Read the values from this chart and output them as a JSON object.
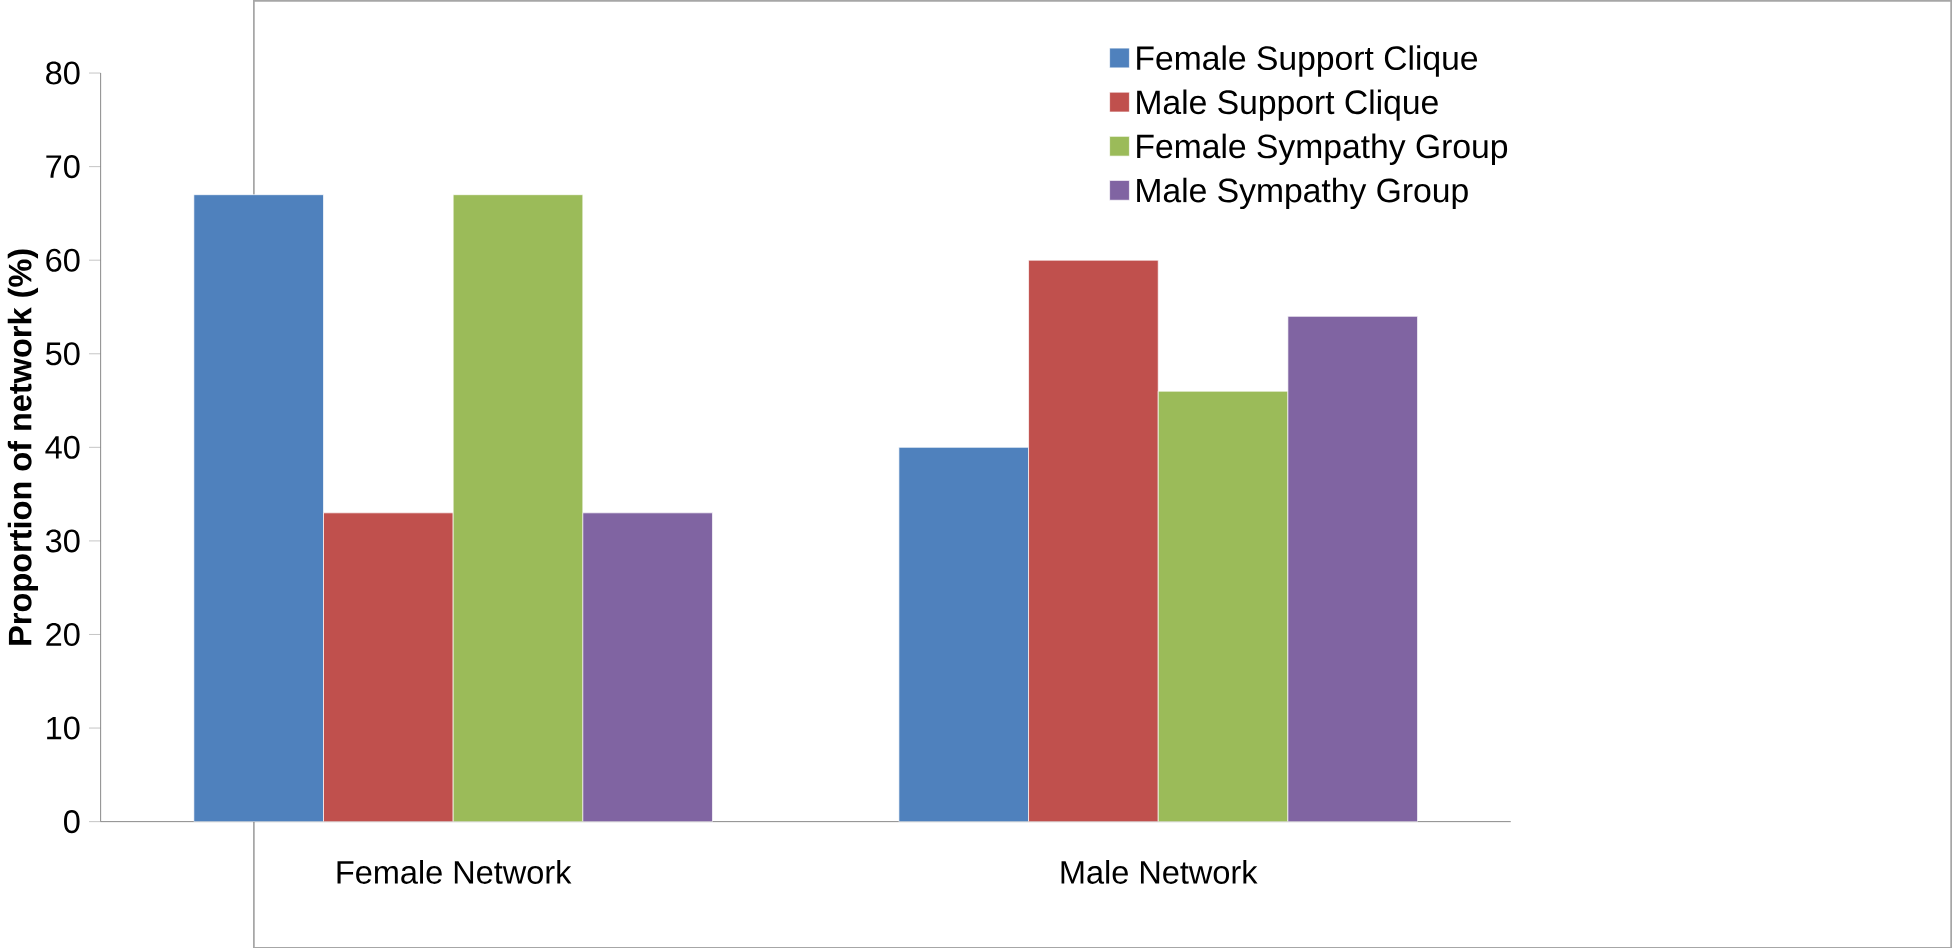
{
  "chart_data": {
    "type": "bar",
    "ylabel": "**Proportion of network (%)**",
    "categories": [
      "Female Network",
      "Male Network"
    ],
    "series": [
      {
        "name": "Female Support Clique",
        "color": "#4f81bd",
        "values": [
          67,
          40
        ]
      },
      {
        "name": "Male Support Clique",
        "color": "#c0504d",
        "values": [
          33,
          60
        ]
      },
      {
        "name": "Female Sympathy Group",
        "color": "#9bbb59",
        "values": [
          67,
          46
        ]
      },
      {
        "name": "Male Sympathy Group",
        "color": "#8064a2",
        "values": [
          33,
          54
        ]
      }
    ],
    "ylim": [
      0,
      80
    ],
    "yticks": [
      0,
      10,
      20,
      30,
      40,
      50,
      60,
      70,
      80
    ],
    "grid": false,
    "legend": "top right"
  }
}
